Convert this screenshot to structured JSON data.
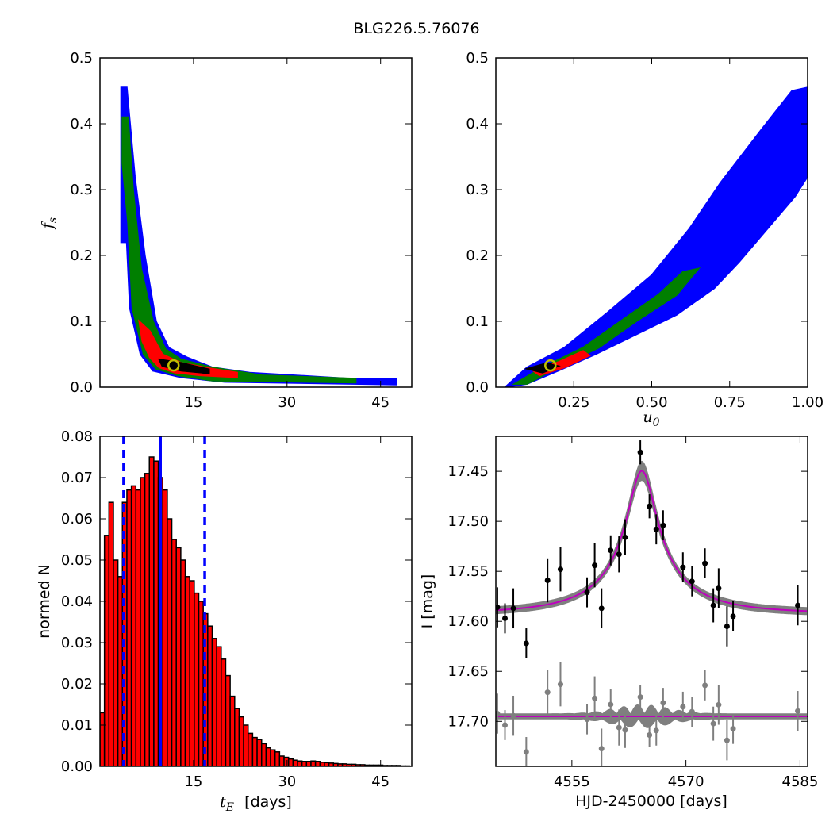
{
  "title": "BLG226.5.76076",
  "colors": {
    "blue": "#0000ff",
    "green": "#007f00",
    "red": "#ff0000",
    "black": "#000000",
    "gray": "#7f7f7f",
    "magenta": "#bf00bf",
    "yellow": "#bfbf00"
  },
  "chart_data": [
    {
      "id": "fs_vs_tE",
      "type": "heatmap",
      "xlabel": "",
      "ylabel": "f_s",
      "xlim": [
        0,
        50
      ],
      "ylim": [
        0,
        0.5
      ],
      "xticks": [
        {
          "v": 15,
          "label": "15"
        },
        {
          "v": 30,
          "label": "30"
        },
        {
          "v": 45,
          "label": "45"
        }
      ],
      "yticks": [
        {
          "v": 0,
          "label": "0.0"
        },
        {
          "v": 0.1,
          "label": "0.1"
        },
        {
          "v": 0.2,
          "label": "0.2"
        },
        {
          "v": 0.3,
          "label": "0.3"
        },
        {
          "v": 0.4,
          "label": "0.4"
        },
        {
          "v": 0.5,
          "label": "0.5"
        }
      ],
      "best_fit": {
        "x": 11.8,
        "y": 0.033
      },
      "regions": [
        {
          "level": "3sigma",
          "color": "#0000ff",
          "points": [
            [
              3.4,
              0.455
            ],
            [
              4.3,
              0.455
            ],
            [
              5.6,
              0.32
            ],
            [
              7.2,
              0.2
            ],
            [
              9,
              0.1
            ],
            [
              11,
              0.06
            ],
            [
              14,
              0.045
            ],
            [
              18,
              0.03
            ],
            [
              24,
              0.022
            ],
            [
              40,
              0.013
            ],
            [
              47.5,
              0.013
            ],
            [
              47.5,
              0.004
            ],
            [
              20,
              0.008
            ],
            [
              13,
              0.015
            ],
            [
              8.5,
              0.025
            ],
            [
              6.5,
              0.05
            ],
            [
              4.8,
              0.12
            ],
            [
              4.3,
              0.22
            ],
            [
              3.4,
              0.22
            ]
          ]
        },
        {
          "level": "2sigma",
          "color": "#007f00",
          "points": [
            [
              3.6,
              0.41
            ],
            [
              4.5,
              0.41
            ],
            [
              5.3,
              0.3
            ],
            [
              6.6,
              0.18
            ],
            [
              8.5,
              0.1
            ],
            [
              10.5,
              0.058
            ],
            [
              13,
              0.042
            ],
            [
              18,
              0.03
            ],
            [
              26,
              0.018
            ],
            [
              41,
              0.013
            ],
            [
              41,
              0.007
            ],
            [
              18,
              0.01
            ],
            [
              12.5,
              0.018
            ],
            [
              9,
              0.028
            ],
            [
              7,
              0.05
            ],
            [
              5.2,
              0.12
            ],
            [
              4.5,
              0.25
            ],
            [
              3.6,
              0.34
            ]
          ]
        },
        {
          "level": "1sigma",
          "color": "#ff0000",
          "points": [
            [
              6.3,
              0.1
            ],
            [
              8,
              0.085
            ],
            [
              10,
              0.05
            ],
            [
              13,
              0.037
            ],
            [
              18,
              0.028
            ],
            [
              22,
              0.022
            ],
            [
              22,
              0.015
            ],
            [
              16,
              0.018
            ],
            [
              12,
              0.022
            ],
            [
              9.5,
              0.03
            ],
            [
              8,
              0.045
            ],
            [
              6.8,
              0.07
            ]
          ]
        },
        {
          "level": "best",
          "color": "#000000",
          "points": [
            [
              9.5,
              0.042
            ],
            [
              13,
              0.037
            ],
            [
              17.5,
              0.027
            ],
            [
              17.5,
              0.021
            ],
            [
              13,
              0.025
            ],
            [
              10,
              0.032
            ]
          ]
        }
      ]
    },
    {
      "id": "fs_vs_u0",
      "type": "heatmap",
      "xlabel": "u_0",
      "ylabel": "",
      "xlim": [
        0,
        1
      ],
      "ylim": [
        0,
        0.5
      ],
      "xticks": [
        {
          "v": 0.25,
          "label": "0.25"
        },
        {
          "v": 0.5,
          "label": "0.50"
        },
        {
          "v": 0.75,
          "label": "0.75"
        },
        {
          "v": 1.0,
          "label": "1.00"
        }
      ],
      "yticks": [
        {
          "v": 0,
          "label": "0.0"
        },
        {
          "v": 0.1,
          "label": "0.1"
        },
        {
          "v": 0.2,
          "label": "0.2"
        },
        {
          "v": 0.3,
          "label": "0.3"
        },
        {
          "v": 0.4,
          "label": "0.4"
        },
        {
          "v": 0.5,
          "label": "0.5"
        }
      ],
      "best_fit": {
        "x": 0.175,
        "y": 0.033
      },
      "regions": [
        {
          "level": "3sigma",
          "color": "#0000ff",
          "points": [
            [
              0.03,
              0.0
            ],
            [
              0.1,
              0.03
            ],
            [
              0.22,
              0.06
            ],
            [
              0.35,
              0.11
            ],
            [
              0.5,
              0.17
            ],
            [
              0.62,
              0.24
            ],
            [
              0.72,
              0.31
            ],
            [
              0.85,
              0.39
            ],
            [
              0.95,
              0.45
            ],
            [
              1.0,
              0.455
            ],
            [
              1.0,
              0.32
            ],
            [
              0.96,
              0.29
            ],
            [
              0.87,
              0.24
            ],
            [
              0.78,
              0.19
            ],
            [
              0.7,
              0.15
            ],
            [
              0.58,
              0.11
            ],
            [
              0.45,
              0.08
            ],
            [
              0.32,
              0.05
            ],
            [
              0.2,
              0.025
            ],
            [
              0.1,
              0.005
            ]
          ]
        },
        {
          "level": "2sigma",
          "color": "#007f00",
          "points": [
            [
              0.06,
              0.005
            ],
            [
              0.15,
              0.03
            ],
            [
              0.28,
              0.06
            ],
            [
              0.4,
              0.1
            ],
            [
              0.52,
              0.14
            ],
            [
              0.6,
              0.175
            ],
            [
              0.65,
              0.18
            ],
            [
              0.58,
              0.14
            ],
            [
              0.45,
              0.1
            ],
            [
              0.33,
              0.06
            ],
            [
              0.2,
              0.03
            ],
            [
              0.1,
              0.005
            ]
          ]
        },
        {
          "level": "1sigma",
          "color": "#ff0000",
          "points": [
            [
              0.12,
              0.025
            ],
            [
              0.2,
              0.038
            ],
            [
              0.28,
              0.055
            ],
            [
              0.3,
              0.048
            ],
            [
              0.22,
              0.03
            ],
            [
              0.14,
              0.018
            ]
          ]
        },
        {
          "level": "best",
          "color": "#000000",
          "points": [
            [
              0.1,
              0.028
            ],
            [
              0.16,
              0.036
            ],
            [
              0.2,
              0.032
            ],
            [
              0.15,
              0.022
            ]
          ]
        }
      ]
    },
    {
      "id": "tE_hist",
      "type": "bar",
      "xlabel": "t_E",
      "xlabel_suffix": "[days]",
      "ylabel": "normed N",
      "xlim": [
        0,
        50
      ],
      "ylim": [
        0,
        0.08
      ],
      "xticks": [
        {
          "v": 15,
          "label": "15"
        },
        {
          "v": 30,
          "label": "30"
        },
        {
          "v": 45,
          "label": "45"
        }
      ],
      "yticks": [
        {
          "v": 0,
          "label": "0.00"
        },
        {
          "v": 0.01,
          "label": "0.01"
        },
        {
          "v": 0.02,
          "label": "0.02"
        },
        {
          "v": 0.03,
          "label": "0.03"
        },
        {
          "v": 0.04,
          "label": "0.04"
        },
        {
          "v": 0.05,
          "label": "0.05"
        },
        {
          "v": 0.06,
          "label": "0.06"
        },
        {
          "v": 0.07,
          "label": "0.07"
        },
        {
          "v": 0.08,
          "label": "0.08"
        }
      ],
      "bin_start": 0,
      "bin_width": 0.72,
      "values": [
        0.013,
        0.056,
        0.064,
        0.05,
        0.046,
        0.064,
        0.067,
        0.068,
        0.067,
        0.07,
        0.071,
        0.075,
        0.074,
        0.07,
        0.067,
        0.06,
        0.055,
        0.053,
        0.05,
        0.046,
        0.045,
        0.042,
        0.04,
        0.037,
        0.034,
        0.031,
        0.029,
        0.026,
        0.022,
        0.017,
        0.014,
        0.012,
        0.01,
        0.008,
        0.007,
        0.0065,
        0.0055,
        0.0045,
        0.004,
        0.0035,
        0.0025,
        0.0022,
        0.0018,
        0.0015,
        0.0013,
        0.0012,
        0.0012,
        0.0013,
        0.0012,
        0.001,
        0.0009,
        0.0008,
        0.0007,
        0.0006,
        0.0006,
        0.0005,
        0.0005,
        0.0004,
        0.0004,
        0.0003,
        0.0003,
        0.0003,
        0.0003,
        0.0002,
        0.0002,
        0.0002,
        0.0002,
        0.0001,
        0.0001
      ],
      "median": 9.7,
      "lower": 3.8,
      "upper": 16.8
    },
    {
      "id": "lightcurve",
      "type": "scatter",
      "xlabel": "HJD-2450000 [days]",
      "ylabel": "I [mag]",
      "xlim": [
        4545,
        4586
      ],
      "ylim": [
        17.745,
        17.415
      ],
      "xticks": [
        {
          "v": 4555,
          "label": "4555"
        },
        {
          "v": 4570,
          "label": "4570"
        },
        {
          "v": 4585,
          "label": "4585"
        }
      ],
      "yticks": [
        {
          "v": 17.45,
          "label": "17.45"
        },
        {
          "v": 17.5,
          "label": "17.50"
        },
        {
          "v": 17.55,
          "label": "17.55"
        },
        {
          "v": 17.6,
          "label": "17.60"
        },
        {
          "v": 17.65,
          "label": "17.65"
        },
        {
          "v": 17.7,
          "label": "17.70"
        }
      ],
      "model": {
        "baseline": 17.592,
        "amplitude": 0.152,
        "t0": 4564.2,
        "u0": 0.175,
        "tE": 11.8,
        "fs": 0.033
      },
      "residual_offset": 17.695,
      "points": [
        {
          "x": 4545.2,
          "y": 17.586,
          "err": 0.02
        },
        {
          "x": 4546.2,
          "y": 17.597,
          "err": 0.015
        },
        {
          "x": 4547.3,
          "y": 17.587,
          "err": 0.02
        },
        {
          "x": 4549.0,
          "y": 17.622,
          "err": 0.015
        },
        {
          "x": 4551.8,
          "y": 17.559,
          "err": 0.022
        },
        {
          "x": 4553.5,
          "y": 17.548,
          "err": 0.022
        },
        {
          "x": 4557.0,
          "y": 17.571,
          "err": 0.015
        },
        {
          "x": 4558.0,
          "y": 17.544,
          "err": 0.022
        },
        {
          "x": 4558.9,
          "y": 17.587,
          "err": 0.02
        },
        {
          "x": 4560.1,
          "y": 17.529,
          "err": 0.015
        },
        {
          "x": 4561.2,
          "y": 17.533,
          "err": 0.018
        },
        {
          "x": 4562.0,
          "y": 17.516,
          "err": 0.018
        },
        {
          "x": 4564.0,
          "y": 17.431,
          "err": 0.012
        },
        {
          "x": 4565.2,
          "y": 17.485,
          "err": 0.012
        },
        {
          "x": 4566.1,
          "y": 17.508,
          "err": 0.015
        },
        {
          "x": 4567.0,
          "y": 17.504,
          "err": 0.015
        },
        {
          "x": 4569.6,
          "y": 17.546,
          "err": 0.015
        },
        {
          "x": 4570.8,
          "y": 17.56,
          "err": 0.015
        },
        {
          "x": 4572.5,
          "y": 17.542,
          "err": 0.015
        },
        {
          "x": 4573.6,
          "y": 17.584,
          "err": 0.017
        },
        {
          "x": 4574.3,
          "y": 17.567,
          "err": 0.02
        },
        {
          "x": 4575.4,
          "y": 17.605,
          "err": 0.02
        },
        {
          "x": 4576.2,
          "y": 17.595,
          "err": 0.015
        },
        {
          "x": 4584.7,
          "y": 17.584,
          "err": 0.02
        }
      ]
    }
  ]
}
